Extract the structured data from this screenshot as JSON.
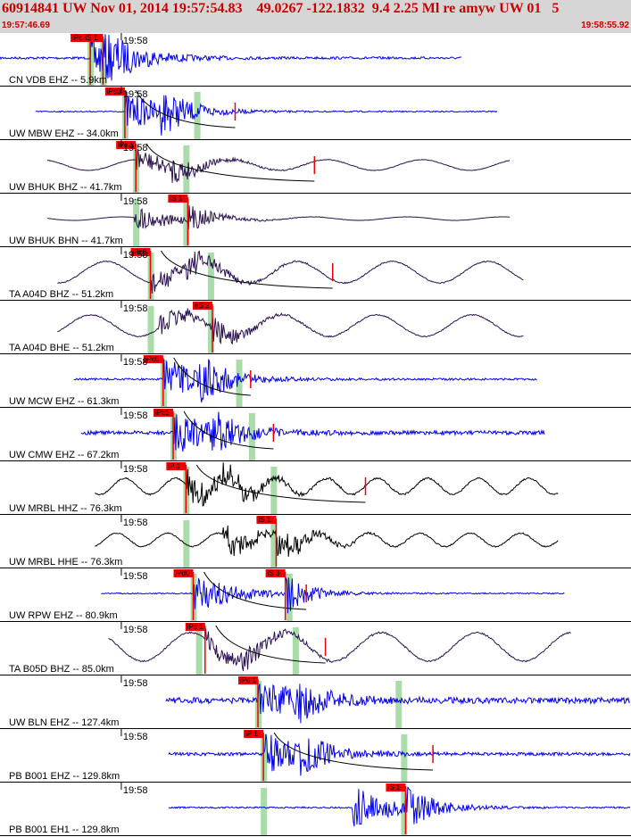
{
  "header": {
    "title": "60914841 UW Nov 01, 2014 19:57:54.83    49.0267 -122.1832  9.4 2.25 Ml re amyw UW 01   5",
    "start_time": "19:57:46.69",
    "end_time": "19:58:55.92"
  },
  "colors": {
    "header_bg": "#d6d6d6",
    "header_text": "#cc0000",
    "blue_trace": "#0000ee",
    "dark_trace": "#2a1050",
    "black_trace": "#000000",
    "pick_box": "#ee0000",
    "pick_line": "#ee0000",
    "theory_band": "#a8dca8",
    "traveltime_curve": "#000000"
  },
  "chart_data": {
    "type": "line",
    "x_unit": "seconds after 19:57:46.69",
    "xlim": [
      0,
      69.23
    ],
    "tick_label": "19:58",
    "tick_x": 13.31,
    "traces": [
      {
        "label": "CN VDB EHZ -- 5.9km",
        "color": "blue",
        "start": 0,
        "end": 50.7,
        "amp": 0.06,
        "period": "hf",
        "p": {
          "t": 9.9,
          "label": "iPc 1"
        },
        "s": {
          "t": 11.3,
          "label": "iS 1"
        },
        "bands": [
          9.9,
          11.3
        ]
      },
      {
        "label": "UW MBW EHZ -- 34.0km",
        "color": "blue",
        "start": 3.9,
        "end": 54.6,
        "amp": 0.03,
        "period": "hf",
        "p": {
          "t": 13.7,
          "label": "iPc0"
        },
        "s": null,
        "bands": [
          13.7,
          21.6
        ],
        "mark": 25.8
      },
      {
        "label": "UW BHUK BHZ -- 41.7km",
        "color": "dark",
        "start": 5.2,
        "end": 56.0,
        "amp": 0.15,
        "period": "lf",
        "p": {
          "t": 14.9,
          "label": "iPc 1"
        },
        "s": null,
        "bands": [
          14.9,
          20.4
        ],
        "mark": 34.5
      },
      {
        "label": "UW BHUK BHN -- 41.7km",
        "color": "dark",
        "start": 5.2,
        "end": 56.0,
        "amp": 0.05,
        "period": "lf",
        "p": null,
        "s": {
          "t": 20.6,
          "label": "iS 1"
        },
        "bands": [
          14.9,
          20.4
        ]
      },
      {
        "label": "TA A04D BHZ -- 51.2km",
        "color": "dark",
        "start": 6.3,
        "end": 57.5,
        "amp": 0.3,
        "period": "lf",
        "p": {
          "t": 16.5,
          "label": "iPc0"
        },
        "s": null,
        "bands": [
          16.5,
          23.1
        ],
        "mark": 36.5
      },
      {
        "label": "TA A04D BHE -- 51.2km",
        "color": "dark",
        "start": 6.3,
        "end": 57.5,
        "amp": 0.3,
        "period": "lf",
        "p": null,
        "s": {
          "t": 23.3,
          "label": "eS 2"
        },
        "bands": [
          16.5,
          23.1
        ]
      },
      {
        "label": "UW MCW EHZ -- 61.3km",
        "color": "blue",
        "start": 8.1,
        "end": 59.0,
        "amp": 0.05,
        "period": "hf",
        "p": {
          "t": 17.9,
          "label": "iPc0"
        },
        "s": null,
        "bands": [
          17.9,
          26.2
        ],
        "mark": 27.5
      },
      {
        "label": "UW CMW EHZ -- 67.2km",
        "color": "blue",
        "start": 8.9,
        "end": 59.8,
        "amp": 0.1,
        "period": "hf",
        "p": {
          "t": 19.0,
          "label": "iPc1"
        },
        "s": null,
        "bands": [
          19.0,
          27.6
        ],
        "mark": 30.0
      },
      {
        "label": "UW MRBL HHZ -- 76.3km",
        "color": "black",
        "start": 10.4,
        "end": 61.3,
        "amp": 0.3,
        "period": "mf",
        "p": {
          "t": 20.4,
          "label": "iP 1"
        },
        "s": null,
        "bands": [
          20.4,
          30.0
        ],
        "mark": 40.1
      },
      {
        "label": "UW MRBL HHE -- 76.3km",
        "color": "black",
        "start": 10.4,
        "end": 61.3,
        "amp": 0.25,
        "period": "mf",
        "p": null,
        "s": {
          "t": 30.3,
          "label": "iS 1"
        },
        "bands": [
          20.4,
          30.0
        ]
      },
      {
        "label": "UW RPW EHZ -- 80.9km",
        "color": "blue",
        "start": 11.1,
        "end": 62.0,
        "amp": 0.03,
        "period": "hf",
        "p": {
          "t": 21.2,
          "label": "iPd0"
        },
        "s": {
          "t": 31.3,
          "label": "iS 3"
        },
        "bands": [
          21.2,
          31.7
        ],
        "mark": 33.6
      },
      {
        "label": "TA B05D BHZ -- 85.0km",
        "color": "dark",
        "start": 11.9,
        "end": 62.7,
        "amp": 0.4,
        "period": "lf",
        "p": {
          "t": 22.5,
          "label": "iPc 1"
        },
        "s": null,
        "bands": [
          21.8,
          32.4
        ],
        "mark": 35.7
      },
      {
        "label": "UW BLN EHZ -- 127.4km",
        "color": "blue",
        "start": 18.2,
        "end": 69.2,
        "amp": 0.15,
        "period": "hf",
        "p": {
          "t": 28.3,
          "label": "iPd 1"
        },
        "s": null,
        "bands": [
          28.3,
          43.7
        ]
      },
      {
        "label": "PB B001 EHZ -- 129.8km",
        "color": "blue",
        "start": 18.5,
        "end": 69.2,
        "amp": 0.08,
        "period": "hf",
        "p": {
          "t": 28.9,
          "label": "iP 1"
        },
        "s": null,
        "bands": [
          28.9,
          44.3
        ],
        "mark": 47.5
      },
      {
        "label": "PB B001 EH1 -- 129.8km",
        "color": "blue",
        "start": 18.5,
        "end": 69.2,
        "amp": 0.04,
        "period": "hf",
        "p": null,
        "s": {
          "t": 44.5,
          "label": "iS 1"
        },
        "bands": [
          28.9,
          44.3
        ]
      }
    ]
  }
}
